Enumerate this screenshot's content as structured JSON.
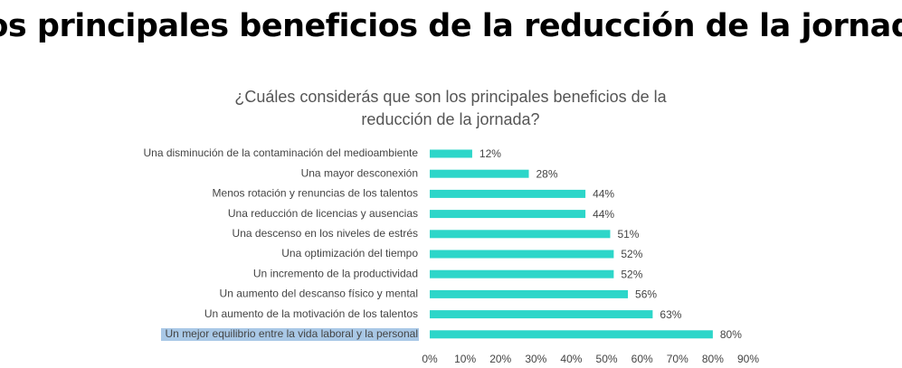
{
  "chart_data": {
    "type": "hbar",
    "title": "Los principales beneficios de la reducción de la jornada",
    "subtitle": [
      "¿Cuáles considerás que son los principales beneficios de la",
      "reducción de la jornada?"
    ],
    "categories": [
      "Una disminución de la contaminación del medioambiente",
      "Una mayor desconexión",
      "Menos rotación y renuncias de los talentos",
      "Una reducción de licencias y ausencias",
      "Una descenso en los niveles de estrés",
      "Una optimización del tiempo",
      "Un incremento de la productividad",
      "Un aumento del descanso físico y mental",
      "Un aumento de la motivación de los talentos",
      "Un mejor equilibrio entre la vida laboral y la personal"
    ],
    "values": [
      12,
      28,
      44,
      44,
      51,
      52,
      52,
      56,
      63,
      80
    ],
    "value_labels": [
      "12%",
      "28%",
      "44%",
      "44%",
      "51%",
      "52%",
      "52%",
      "56%",
      "63%",
      "80%"
    ],
    "color": "#2dd6c9",
    "xlim": [
      0,
      90
    ],
    "xticks": [
      {
        "value": 0,
        "label": "0%"
      },
      {
        "value": 10,
        "label": "10%"
      },
      {
        "value": 20,
        "label": "20%"
      },
      {
        "value": 30,
        "label": "30%"
      },
      {
        "value": 40,
        "label": "40%"
      },
      {
        "value": 50,
        "label": "50%"
      },
      {
        "value": 60,
        "label": "60%"
      },
      {
        "value": 70,
        "label": "70%"
      },
      {
        "value": 80,
        "label": "80%"
      },
      {
        "value": 90,
        "label": "90%"
      }
    ]
  }
}
